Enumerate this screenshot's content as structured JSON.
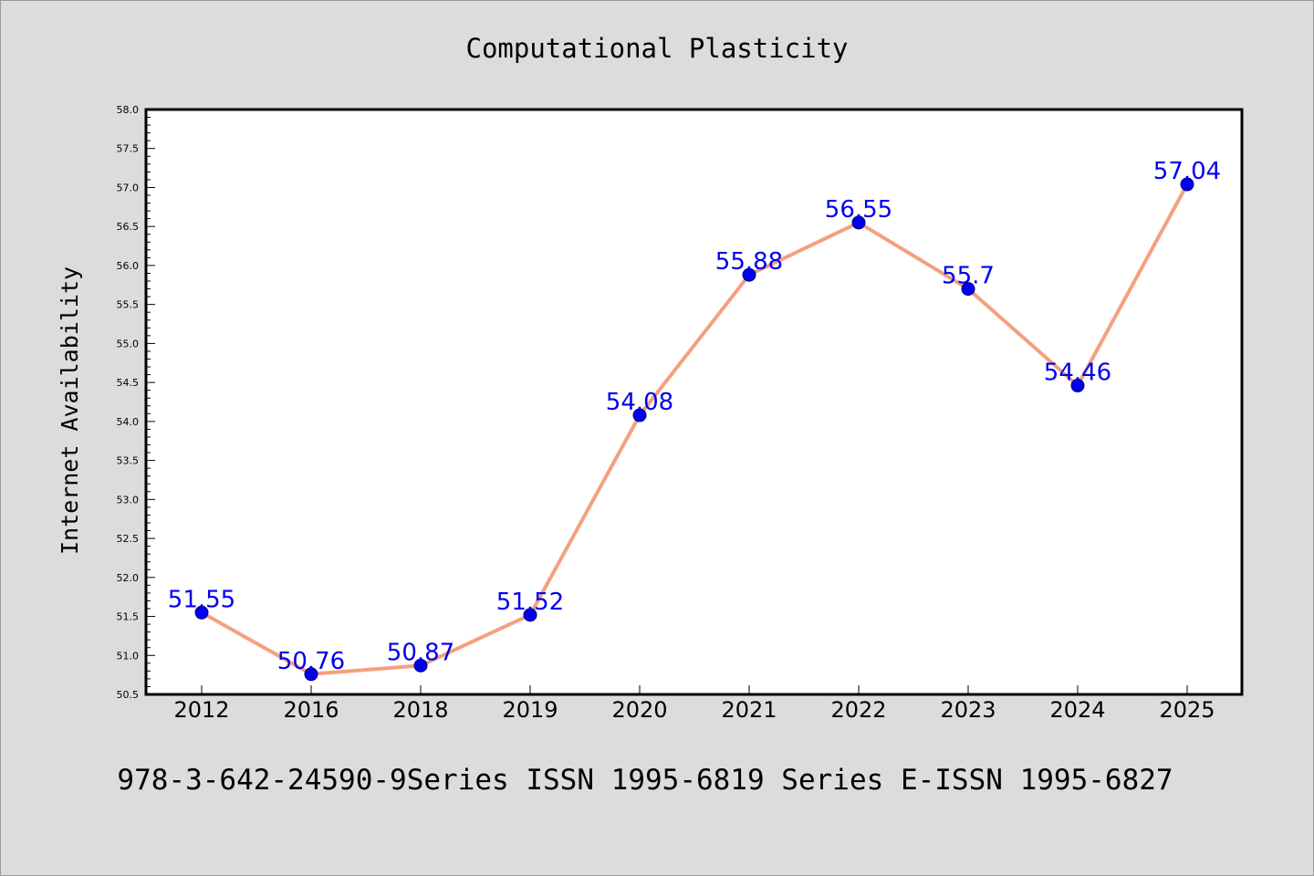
{
  "footer": "978-3-642-24590-9Series ISSN 1995-6819 Series E-ISSN 1995-6827",
  "chart_data": {
    "type": "line",
    "title": "Computational Plasticity",
    "xlabel": "",
    "ylabel": "Internet Availability",
    "categories": [
      "2012",
      "2016",
      "2018",
      "2019",
      "2020",
      "2021",
      "2022",
      "2023",
      "2024",
      "2025"
    ],
    "series": [
      {
        "values": [
          51.55,
          50.76,
          50.87,
          51.52,
          54.08,
          55.88,
          56.55,
          55.7,
          54.46,
          57.04
        ],
        "data_labels": [
          "51.55",
          "50.76",
          "50.87",
          "51.52",
          "54.08",
          "55.88",
          "56.55",
          "55.7",
          "54.46",
          "57.04"
        ],
        "line_color": "#f4a07e",
        "marker_color": "#0000ee",
        "label_color": "#0000ee"
      }
    ],
    "ylim": [
      50.5,
      58.0
    ],
    "yticks": [
      "50.5",
      "51.0",
      "51.5",
      "52.0",
      "52.5",
      "53.0",
      "53.5",
      "54.0",
      "54.5",
      "55.0",
      "55.5",
      "56.0",
      "56.5",
      "57.0",
      "57.5",
      "58.0"
    ],
    "grid": false,
    "legend": "none",
    "plot_background": "#ffffff",
    "figure_background": "#dcdcdc"
  }
}
